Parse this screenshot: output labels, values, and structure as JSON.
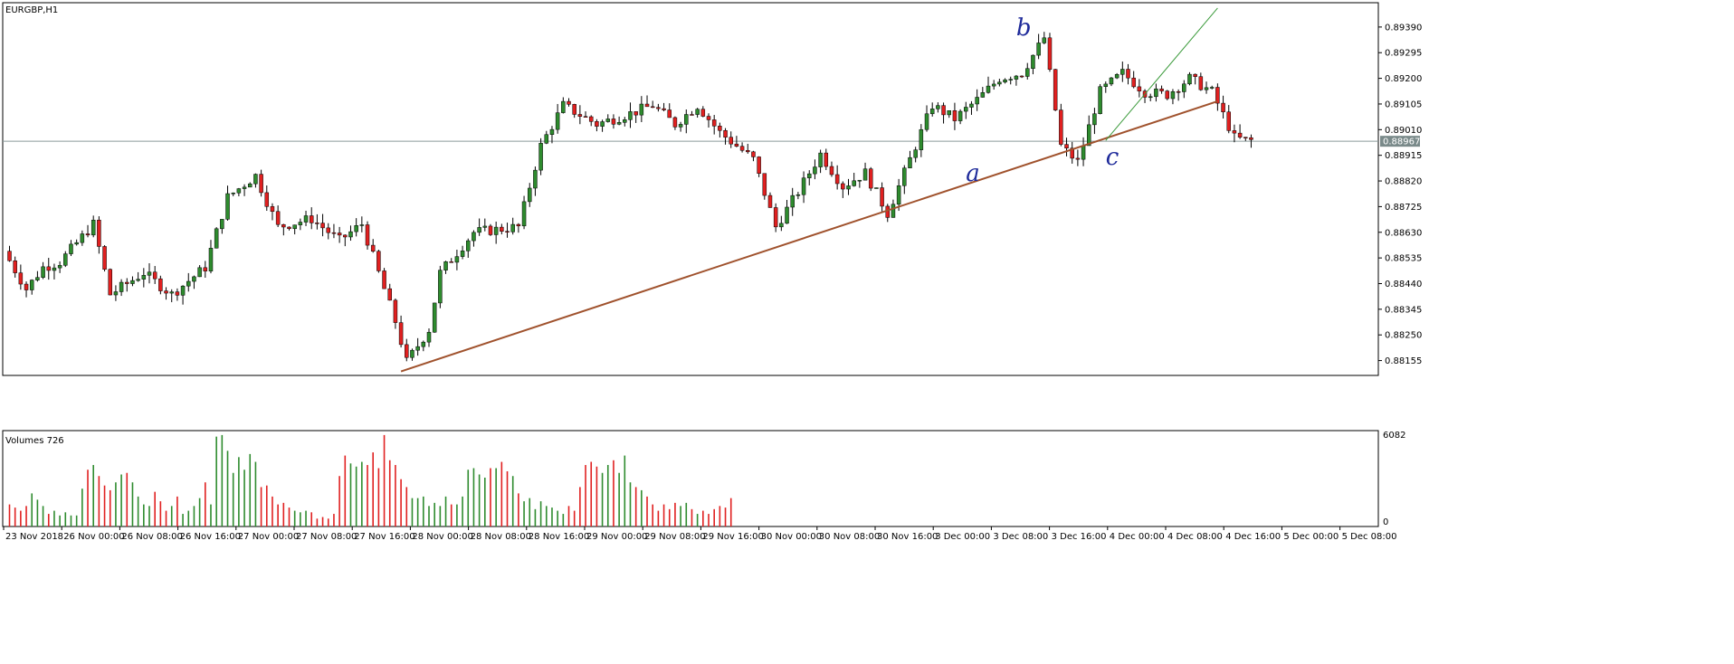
{
  "chart_data": [
    {
      "type": "candlestick",
      "title": "EURGBP,H1",
      "ylim": [
        0.881,
        0.8948
      ],
      "y_ticks": [
        "0.89390",
        "0.89295",
        "0.89200",
        "0.89105",
        "0.89010",
        "0.88915",
        "0.88820",
        "0.88725",
        "0.88630",
        "0.88535",
        "0.88440",
        "0.88345",
        "0.88250",
        "0.88155"
      ],
      "current_price": "0.88967",
      "x_ticks": [
        "23 Nov 2018",
        "26 Nov 00:00",
        "26 Nov 08:00",
        "26 Nov 16:00",
        "27 Nov 00:00",
        "27 Nov 08:00",
        "27 Nov 16:00",
        "28 Nov 00:00",
        "28 Nov 08:00",
        "28 Nov 16:00",
        "29 Nov 00:00",
        "29 Nov 08:00",
        "29 Nov 16:00",
        "30 Nov 00:00",
        "30 Nov 08:00",
        "30 Nov 16:00",
        "3 Dec 00:00",
        "3 Dec 08:00",
        "3 Dec 16:00",
        "4 Dec 00:00",
        "4 Dec 08:00",
        "4 Dec 16:00",
        "5 Dec 00:00",
        "5 Dec 08:00"
      ],
      "bull_color": "#2e8b2e",
      "bear_color": "#e02020",
      "trendline_color": "#a0522d",
      "projection_color": "#3a9a3a",
      "wave_labels": [
        "a",
        "b",
        "c"
      ],
      "trendline": {
        "from": {
          "bar": 0,
          "price": 0.88115
        },
        "to": {
          "bar": 130,
          "price": 0.89115
        }
      },
      "candles": []
    },
    {
      "type": "bar",
      "title": "Volumes 726",
      "ylim": [
        0,
        6082
      ],
      "y_ticks": [
        "6082",
        "0"
      ],
      "up_color": "#2e8b2e",
      "down_color": "#e02020",
      "values": [
        1400,
        1200,
        1000,
        1300,
        2100,
        1700,
        1300,
        800,
        1000,
        700,
        900,
        700,
        700,
        2400,
        3600,
        3900,
        3200,
        2600,
        2300,
        2800,
        3300,
        3400,
        2800,
        1900,
        1400,
        1300,
        2200,
        1600,
        1000,
        1300,
        1900,
        800,
        1000,
        1300,
        1800,
        2800,
        1400,
        5700,
        5800,
        4800,
        3400,
        4400,
        3600,
        4600,
        4100,
        2500,
        2600,
        1900,
        1400,
        1500,
        1200,
        1000,
        900,
        1000,
        900,
        500,
        600,
        500,
        800,
        3200,
        4500,
        4000,
        3800,
        4100,
        3900,
        4700,
        3700,
        5800,
        4200,
        3900,
        3000,
        2500,
        1800,
        1800,
        1900,
        1300,
        1500,
        1300,
        1900,
        1400,
        1400,
        1900,
        3600,
        3700,
        3300,
        3100,
        3700,
        3700,
        4100,
        3500,
        3200,
        2100,
        1600,
        1800,
        1100,
        1600,
        1300,
        1200,
        1000,
        800,
        1300,
        1000,
        2500,
        3900,
        4100,
        3800,
        3400,
        3900,
        4200,
        3400,
        4500,
        2800,
        2500,
        2300,
        1900,
        1400,
        1000,
        1400,
        1100,
        1500,
        1300,
        1500,
        1100,
        800,
        1000,
        800,
        1100,
        1300,
        1200,
        1800
      ]
    }
  ]
}
